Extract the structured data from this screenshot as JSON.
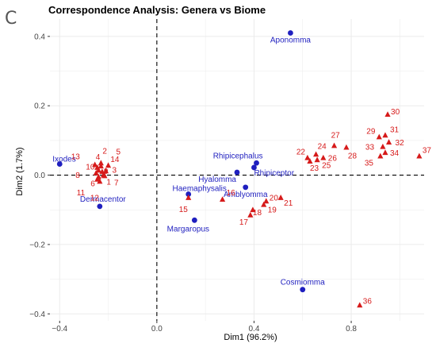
{
  "panel_letter": "C",
  "chart_data": {
    "type": "scatter",
    "title": "Correspondence Analysis: Genera vs Biome",
    "xlabel": "Dim1 (96.2%)",
    "ylabel": "Dim2 (1.7%)",
    "xlim": [
      -0.44,
      1.1
    ],
    "ylim": [
      -0.42,
      0.45
    ],
    "xticks": [
      -0.4,
      0.0,
      0.4,
      0.8
    ],
    "xtick_labels": [
      "−0.4",
      "0.0",
      "0.4",
      "0.8"
    ],
    "yticks": [
      -0.4,
      -0.2,
      0.0,
      0.2,
      0.4
    ],
    "ytick_labels": [
      "−0.4",
      "−0.2",
      "0.0",
      "0.2",
      "0.4"
    ],
    "grid": true,
    "reference_lines": {
      "x": 0,
      "y": 0,
      "style": "dashed"
    },
    "colors": {
      "genus": "#1f1fbf",
      "biome": "#d61a1a",
      "grid": "#ebebeb"
    },
    "series": [
      {
        "marker": "circle",
        "color": "#1f1fbf",
        "points": [
          {
            "label": "Aponomma",
            "x": 0.55,
            "y": 0.41
          },
          {
            "label": "Ixodes",
            "x": -0.4,
            "y": 0.032
          },
          {
            "label": "Rhipicephalus",
            "x": 0.41,
            "y": 0.035
          },
          {
            "label": "Rhipiceptor",
            "x": 0.4,
            "y": 0.022
          },
          {
            "label": "Hyalomma",
            "x": 0.33,
            "y": 0.008
          },
          {
            "label": "Amblyomma",
            "x": 0.365,
            "y": -0.035
          },
          {
            "label": "Haemaphysalis",
            "x": 0.13,
            "y": -0.055
          },
          {
            "label": "Dermacentor",
            "x": -0.235,
            "y": -0.09
          },
          {
            "label": "Margaropus",
            "x": 0.155,
            "y": -0.13
          },
          {
            "label": "Cosmiomma",
            "x": 0.6,
            "y": -0.33
          }
        ]
      },
      {
        "marker": "triangle",
        "color": "#d61a1a",
        "points": [
          {
            "label": "1",
            "x": -0.22,
            "y": 0.0
          },
          {
            "label": "2",
            "x": -0.23,
            "y": 0.035
          },
          {
            "label": "3",
            "x": -0.21,
            "y": 0.012
          },
          {
            "label": "4",
            "x": -0.245,
            "y": 0.022
          },
          {
            "label": "5",
            "x": -0.2,
            "y": 0.028
          },
          {
            "label": "6",
            "x": -0.24,
            "y": -0.005
          },
          {
            "label": "7",
            "x": -0.215,
            "y": -0.002
          },
          {
            "label": "8",
            "x": -0.25,
            "y": 0.006
          },
          {
            "label": "9",
            "x": -0.225,
            "y": 0.01
          },
          {
            "label": "10",
            "x": -0.24,
            "y": 0.014
          },
          {
            "label": "11",
            "x": -0.245,
            "y": -0.012
          },
          {
            "label": "12",
            "x": -0.235,
            "y": -0.018
          },
          {
            "label": "13",
            "x": -0.255,
            "y": 0.03
          },
          {
            "label": "14",
            "x": -0.23,
            "y": 0.026
          },
          {
            "label": "15",
            "x": 0.13,
            "y": -0.065
          },
          {
            "label": "16",
            "x": 0.27,
            "y": -0.07
          },
          {
            "label": "17",
            "x": 0.385,
            "y": -0.115
          },
          {
            "label": "18",
            "x": 0.395,
            "y": -0.1
          },
          {
            "label": "19",
            "x": 0.44,
            "y": -0.085
          },
          {
            "label": "20",
            "x": 0.45,
            "y": -0.075
          },
          {
            "label": "21",
            "x": 0.51,
            "y": -0.065
          },
          {
            "label": "22",
            "x": 0.62,
            "y": 0.05
          },
          {
            "label": "23",
            "x": 0.63,
            "y": 0.04
          },
          {
            "label": "24",
            "x": 0.655,
            "y": 0.06
          },
          {
            "label": "25",
            "x": 0.66,
            "y": 0.044
          },
          {
            "label": "26",
            "x": 0.685,
            "y": 0.05
          },
          {
            "label": "27",
            "x": 0.73,
            "y": 0.085
          },
          {
            "label": "28",
            "x": 0.78,
            "y": 0.08
          },
          {
            "label": "29",
            "x": 0.915,
            "y": 0.11
          },
          {
            "label": "30",
            "x": 0.95,
            "y": 0.175
          },
          {
            "label": "31",
            "x": 0.94,
            "y": 0.115
          },
          {
            "label": "32",
            "x": 0.955,
            "y": 0.095
          },
          {
            "label": "33",
            "x": 0.93,
            "y": 0.082
          },
          {
            "label": "34",
            "x": 0.94,
            "y": 0.065
          },
          {
            "label": "35",
            "x": 0.92,
            "y": 0.055
          },
          {
            "label": "36",
            "x": 0.835,
            "y": -0.375
          },
          {
            "label": "37",
            "x": 1.08,
            "y": 0.055
          }
        ]
      }
    ]
  }
}
